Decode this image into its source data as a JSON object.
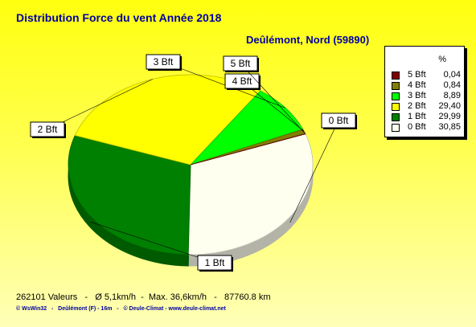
{
  "chart_data": {
    "type": "pie",
    "title": "Distribution Force du vent  Année 2018",
    "subtitle": "Deûlémont, Nord (59890)",
    "legend_header": "%",
    "legend_position": "right",
    "slices": [
      {
        "label": "0 Bft",
        "value": 30.85,
        "color": "#fffff0"
      },
      {
        "label": "1 Bft",
        "value": 29.99,
        "color": "#008000"
      },
      {
        "label": "2 Bft",
        "value": 29.4,
        "color": "#ffff00"
      },
      {
        "label": "3 Bft",
        "value": 8.89,
        "color": "#00ff00"
      },
      {
        "label": "4 Bft",
        "value": 0.84,
        "color": "#808000"
      },
      {
        "label": "5 Bft",
        "value": 0.04,
        "color": "#800000"
      }
    ],
    "legend": [
      {
        "label": "5 Bft",
        "value": "0,04",
        "color": "#800000"
      },
      {
        "label": "4 Bft",
        "value": "0,84",
        "color": "#808000"
      },
      {
        "label": "3 Bft",
        "value": "8,89",
        "color": "#00ff00"
      },
      {
        "label": "2 Bft",
        "value": "29,40",
        "color": "#ffff00"
      },
      {
        "label": "1 Bft",
        "value": "29,99",
        "color": "#008000"
      },
      {
        "label": "0 Bft",
        "value": "30,85",
        "color": "#fffff0"
      }
    ]
  },
  "footer": {
    "stats": "262101 Valeurs   -   Ø 5,1km/h  -  Max. 36,6km/h   -   87760.8 km",
    "credits": "© WsWin32   -   Deûlémont (F) - 16m   -   © Deule-Climat - www.deule-climat.net"
  }
}
